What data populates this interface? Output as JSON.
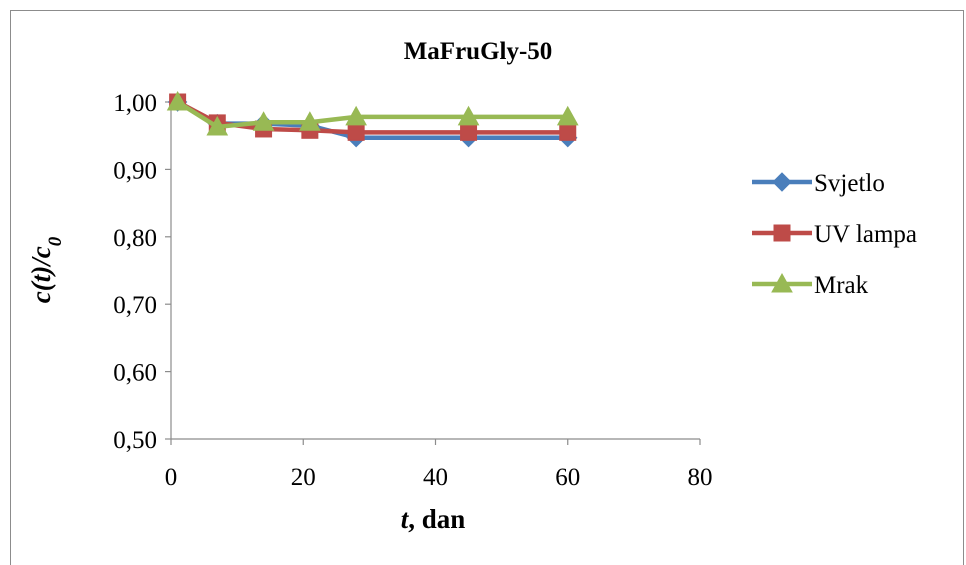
{
  "chart_data": {
    "type": "line",
    "title": "MaFruGly-50",
    "xlabel_var": "t",
    "xlabel_rest": ", dan",
    "ylabel_c": "c",
    "ylabel_t": "(t)/c",
    "ylabel_sub": "0",
    "xlim": [
      0,
      80
    ],
    "ylim": [
      0.5,
      1.0
    ],
    "x_ticks": [
      0,
      20,
      40,
      60,
      80
    ],
    "y_ticks": [
      0.5,
      0.6,
      0.7,
      0.8,
      0.9,
      1.0
    ],
    "y_tick_labels": [
      "0,50",
      "0,60",
      "0,70",
      "0,80",
      "0,90",
      "1,00"
    ],
    "x_tick_labels": [
      "0",
      "20",
      "40",
      "60",
      "80"
    ],
    "x": [
      1,
      7,
      14,
      21,
      28,
      45,
      60
    ],
    "legend_position": "right",
    "grid": false,
    "series": [
      {
        "name": "Svjetlo",
        "marker": "diamond",
        "color": "#4a7ebb",
        "values": [
          1.0,
          0.968,
          0.968,
          0.965,
          0.947,
          0.947,
          0.947
        ]
      },
      {
        "name": "UV lampa",
        "marker": "square",
        "color": "#be4b48",
        "values": [
          1.0,
          0.969,
          0.96,
          0.958,
          0.955,
          0.955,
          0.955
        ]
      },
      {
        "name": "Mrak",
        "marker": "triangle",
        "color": "#98b954",
        "values": [
          1.0,
          0.963,
          0.97,
          0.97,
          0.978,
          0.978,
          0.978
        ]
      }
    ]
  }
}
